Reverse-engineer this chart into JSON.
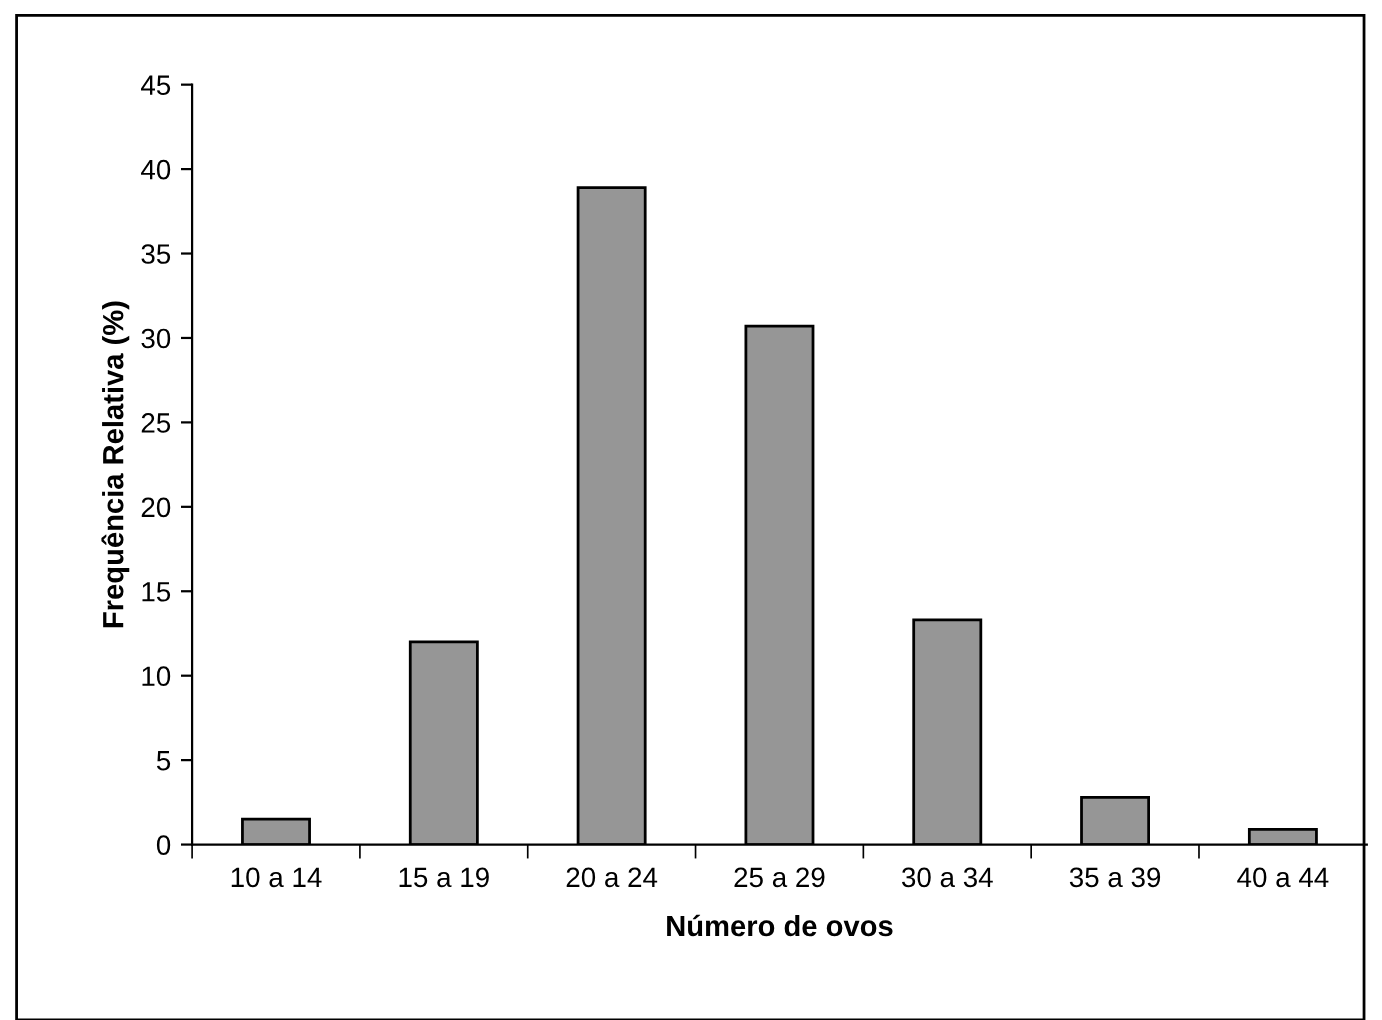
{
  "chart_data": {
    "type": "bar",
    "xlabel": "Número de ovos",
    "ylabel": "Frequência Relativa (%)",
    "categories": [
      "10 a 14",
      "15 a 19",
      "20 a 24",
      "25 a 29",
      "30 a 34",
      "35 a 39",
      "40 a 44"
    ],
    "values": [
      1.5,
      12,
      38.9,
      30.7,
      13.3,
      2.8,
      0.9
    ],
    "color": "#969696",
    "ylim": [
      0,
      45
    ],
    "yticks": [
      0,
      5,
      10,
      15,
      20,
      25,
      30,
      35,
      40,
      45
    ],
    "grid": false
  }
}
